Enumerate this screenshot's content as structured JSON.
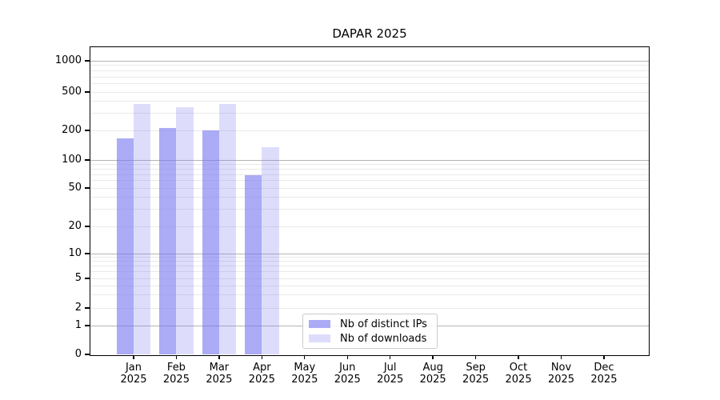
{
  "chart_data": {
    "type": "bar",
    "title": "DAPAR 2025",
    "categories": [
      "Jan",
      "Feb",
      "Mar",
      "Apr",
      "May",
      "Jun",
      "Jul",
      "Aug",
      "Sep",
      "Oct",
      "Nov",
      "Dec"
    ],
    "category_year": "2025",
    "series": [
      {
        "name": "Nb of distinct IPs",
        "color": "rgba(120,120,240,0.62)",
        "rendered_color_hex": "#a9a9f7",
        "values": [
          165,
          210,
          200,
          68,
          0,
          0,
          0,
          0,
          0,
          0,
          0,
          0
        ]
      },
      {
        "name": "Nb of downloads",
        "color": "rgba(120,120,240,0.25)",
        "rendered_color_hex": "#d9d9f8",
        "values": [
          375,
          350,
          375,
          135,
          0,
          0,
          0,
          0,
          0,
          0,
          0,
          0
        ]
      }
    ],
    "xlabel": "",
    "ylabel": "",
    "y_axis": {
      "scale": "symlog",
      "ticks": [
        1000,
        500,
        200,
        100,
        50,
        20,
        10,
        5,
        2,
        1,
        0
      ],
      "major_gridline_values": [
        1,
        10,
        100,
        1000
      ],
      "ylim": [
        0,
        1400
      ]
    },
    "legend": {
      "position": "lower center",
      "entries": [
        "Nb of distinct IPs",
        "Nb of downloads"
      ]
    },
    "grid": true,
    "colors": {
      "major_gridline": "#b4b4b4",
      "minor_gridline": "#e9e9e9",
      "axis": "#000000",
      "legend_border": "#cccccc"
    }
  }
}
